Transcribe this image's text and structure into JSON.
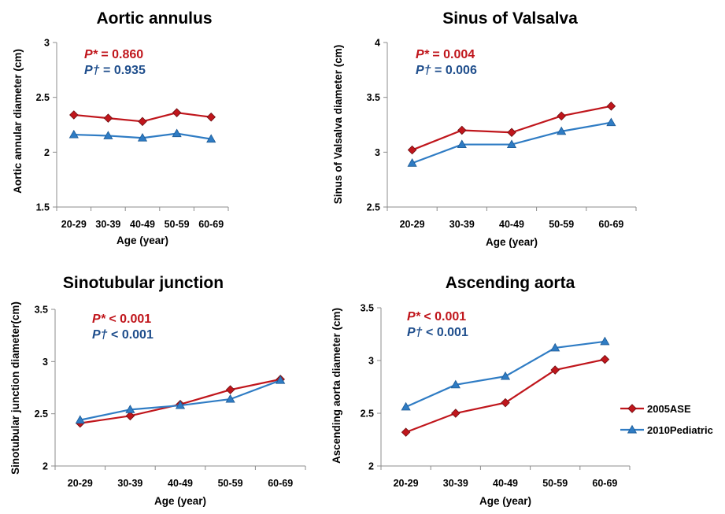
{
  "series_colors": {
    "2005ASE": "#C0161C",
    "2010Pediatric": "#2F7CC4"
  },
  "pvalue_colors": {
    "star": "#C0161C",
    "dagger": "#1F4E8C"
  },
  "legend": {
    "items": [
      {
        "name": "2005ASE",
        "marker": "diamond"
      },
      {
        "name": "2010Pediatric",
        "marker": "triangle"
      }
    ]
  },
  "chart_data": [
    {
      "type": "line",
      "title": "Aortic annulus",
      "xlabel": "Age (year)",
      "ylabel": "Aortic annular diameter (cm)",
      "categories": [
        "20-29",
        "30-39",
        "40-49",
        "50-59",
        "60-69"
      ],
      "ylim": [
        1.5,
        3
      ],
      "yticks": [
        "1.5",
        "2",
        "2.5",
        "3"
      ],
      "grid": false,
      "series": [
        {
          "name": "2005ASE",
          "values": [
            2.34,
            2.31,
            2.28,
            2.36,
            2.32
          ]
        },
        {
          "name": "2010Pediatric",
          "values": [
            2.16,
            2.15,
            2.13,
            2.17,
            2.12
          ]
        }
      ],
      "annotations": {
        "star": {
          "symbol": "P*",
          "relation": "=",
          "value": "0.860"
        },
        "dagger": {
          "symbol": "P†",
          "relation": "=",
          "value": "0.935"
        }
      }
    },
    {
      "type": "line",
      "title": "Sinus of Valsalva",
      "xlabel": "Age (year)",
      "ylabel": "Sinus of Valsalva diameter (cm)",
      "categories": [
        "20-29",
        "30-39",
        "40-49",
        "50-59",
        "60-69"
      ],
      "ylim": [
        2.5,
        4
      ],
      "yticks": [
        "2.5",
        "3",
        "3.5",
        "4"
      ],
      "grid": false,
      "series": [
        {
          "name": "2005ASE",
          "values": [
            3.02,
            3.2,
            3.18,
            3.33,
            3.42
          ]
        },
        {
          "name": "2010Pediatric",
          "values": [
            2.9,
            3.07,
            3.07,
            3.19,
            3.27
          ]
        }
      ],
      "annotations": {
        "star": {
          "symbol": "P*",
          "relation": "=",
          "value": "0.004"
        },
        "dagger": {
          "symbol": "P†",
          "relation": "=",
          "value": "0.006"
        }
      }
    },
    {
      "type": "line",
      "title": "Sinotubular junction",
      "xlabel": "Age (year)",
      "ylabel": "Sinotubular junction diameter(cm)",
      "categories": [
        "20-29",
        "30-39",
        "40-49",
        "50-59",
        "60-69"
      ],
      "ylim": [
        2,
        3.5
      ],
      "yticks": [
        "2",
        "2.5",
        "3",
        "3.5"
      ],
      "grid": false,
      "series": [
        {
          "name": "2005ASE",
          "values": [
            2.41,
            2.48,
            2.59,
            2.73,
            2.83
          ]
        },
        {
          "name": "2010Pediatric",
          "values": [
            2.44,
            2.54,
            2.58,
            2.64,
            2.82
          ]
        }
      ],
      "annotations": {
        "star": {
          "symbol": "P*",
          "relation": "<",
          "value": "0.001"
        },
        "dagger": {
          "symbol": "P†",
          "relation": "<",
          "value": "0.001"
        }
      }
    },
    {
      "type": "line",
      "title": "Ascending aorta",
      "xlabel": "Age (year)",
      "ylabel": "Ascending aorta diameter (cm)",
      "categories": [
        "20-29",
        "30-39",
        "40-49",
        "50-59",
        "60-69"
      ],
      "ylim": [
        2,
        3.5
      ],
      "yticks": [
        "2",
        "2.5",
        "3",
        "3.5"
      ],
      "grid": false,
      "series": [
        {
          "name": "2005ASE",
          "values": [
            2.32,
            2.5,
            2.6,
            2.91,
            3.01
          ]
        },
        {
          "name": "2010Pediatric",
          "values": [
            2.56,
            2.77,
            2.85,
            3.12,
            3.18
          ]
        }
      ],
      "annotations": {
        "star": {
          "symbol": "P*",
          "relation": "<",
          "value": "0.001"
        },
        "dagger": {
          "symbol": "P†",
          "relation": "<",
          "value": "0.001"
        }
      }
    }
  ]
}
